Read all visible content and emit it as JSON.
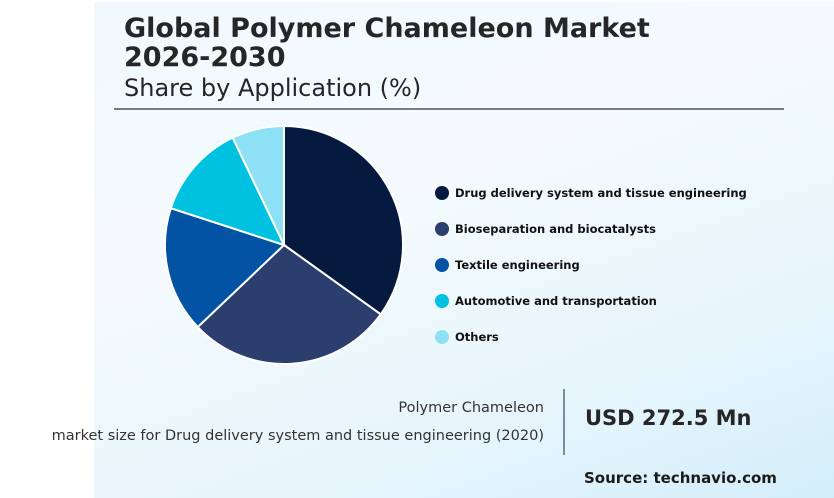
{
  "header": {
    "title_line1": "Global Polymer Chameleon Market",
    "title_line2": "2026-2030",
    "subtitle": "Share by Application (%)"
  },
  "legend": [
    {
      "label": "Drug delivery system and tissue engineering",
      "color": "#061a40"
    },
    {
      "label": "Bioseparation and biocatalysts",
      "color": "#2c3e6e"
    },
    {
      "label": "Textile engineering",
      "color": "#0353a4"
    },
    {
      "label": "Automotive and transportation",
      "color": "#00c2e0"
    },
    {
      "label": "Others",
      "color": "#8ee1f4"
    }
  ],
  "footer": {
    "note_line1": "Polymer Chameleon",
    "note_line2": "market size for Drug delivery system and tissue engineering (2020)",
    "value": "USD 272.5 Mn",
    "source": "Source: technavio.com"
  },
  "chart_data": {
    "type": "pie",
    "title": "Global Polymer Chameleon Market 2026-2030",
    "subtitle": "Share by Application (%)",
    "categories": [
      "Drug delivery system and tissue engineering",
      "Bioseparation and biocatalysts",
      "Textile engineering",
      "Automotive and transportation",
      "Others"
    ],
    "values": [
      34.9,
      28.0,
      17.1,
      12.9,
      7.1
    ],
    "colors": [
      "#061a40",
      "#2c3e6e",
      "#0353a4",
      "#00c2e0",
      "#8ee1f4"
    ],
    "start_angle": "12 o'clock, clockwise",
    "legend_position": "right",
    "annotation": "Polymer Chameleon market size for Drug delivery system and tissue engineering (2020): USD 272.5 Mn"
  }
}
